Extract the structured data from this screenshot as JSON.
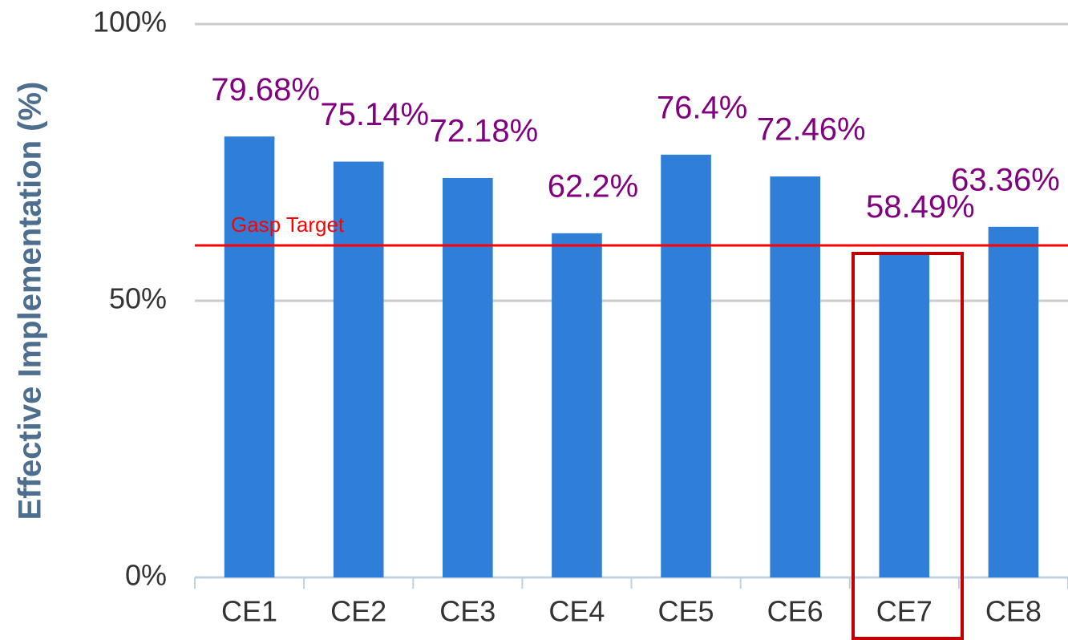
{
  "chart_data": {
    "type": "bar",
    "y_axis_label": "Effective Implementation (%)",
    "categories": [
      "CE1",
      "CE2",
      "CE3",
      "CE4",
      "CE5",
      "CE6",
      "CE7",
      "CE8"
    ],
    "values": [
      79.68,
      75.14,
      72.18,
      62.2,
      76.4,
      72.46,
      58.49,
      63.36
    ],
    "value_labels": [
      "79.68%",
      "75.14%",
      "72.18%",
      "62.2%",
      "76.4%",
      "72.46%",
      "58.49%",
      "63.36%"
    ],
    "color": "#2f7ed8",
    "ylim": [
      0,
      100
    ],
    "yticks": [
      {
        "value": 0,
        "label": "0%"
      },
      {
        "value": 50,
        "label": "50%"
      },
      {
        "value": 100,
        "label": "100%"
      }
    ],
    "grid": true,
    "target": {
      "label": "Gasp Target",
      "value": 60,
      "color": "#ff0000"
    }
  }
}
